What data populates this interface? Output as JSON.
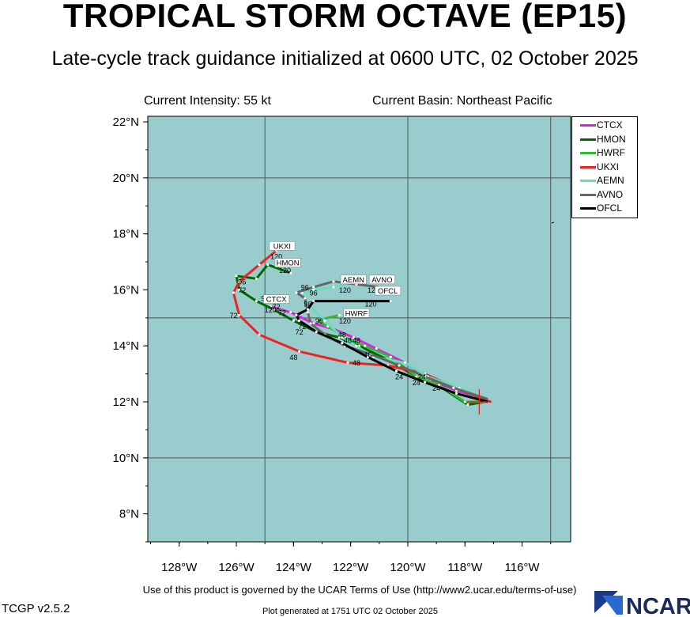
{
  "header": {
    "title": "TROPICAL STORM OCTAVE (EP15)",
    "subtitle": "Late-cycle track guidance initialized at 0600 UTC, 02 October 2025",
    "intensity": "Current Intensity: 55 kt",
    "basin": "Current Basin: Northeast Pacific"
  },
  "footer": {
    "terms": "Use of this product is governed by the UCAR Terms of Use (http://www2.ucar.edu/terms-of-use)",
    "version": "TCGP v2.5.2",
    "generated": "Plot generated at 1751 UTC   02 October 2025",
    "logo_text": "NCAR"
  },
  "map": {
    "ocean_color": "#99cccc",
    "lon_range": [
      -129.1,
      -114.3
    ],
    "lat_range": [
      7.0,
      22.2
    ],
    "lon_ticks": [
      {
        "value": -128,
        "label": "128°W"
      },
      {
        "value": -126,
        "label": "126°W"
      },
      {
        "value": -124,
        "label": "124°W"
      },
      {
        "value": -122,
        "label": "122°W"
      },
      {
        "value": -120,
        "label": "120°W"
      },
      {
        "value": -118,
        "label": "118°W"
      },
      {
        "value": -116,
        "label": "116°W"
      }
    ],
    "lat_ticks": [
      {
        "value": 8,
        "label": "8°N"
      },
      {
        "value": 10,
        "label": "10°N"
      },
      {
        "value": 12,
        "label": "12°N"
      },
      {
        "value": 14,
        "label": "14°N"
      },
      {
        "value": 16,
        "label": "16°N"
      },
      {
        "value": 18,
        "label": "18°N"
      },
      {
        "value": 20,
        "label": "20°N"
      },
      {
        "value": 22,
        "label": "22°N"
      }
    ],
    "grid_lon": [
      -125,
      -120,
      -115
    ],
    "grid_lat": [
      10,
      15,
      20
    ],
    "current_position": {
      "lon": -117.5,
      "lat": 12.0
    }
  },
  "chart_data": {
    "type": "map-tracks",
    "tracks": [
      {
        "name": "CTCX",
        "color": "#dd22dd",
        "points": [
          [
            -117.2,
            12.1
          ],
          [
            -118.3,
            12.4
          ],
          [
            -119.2,
            12.8
          ],
          [
            -120.1,
            13.4
          ],
          [
            -121.1,
            13.9
          ],
          [
            -121.9,
            14.3
          ],
          [
            -122.6,
            14.6
          ],
          [
            -123.3,
            14.8
          ],
          [
            -124.1,
            15.2
          ],
          [
            -124.8,
            15.4
          ]
        ]
      },
      {
        "name": "HMON",
        "color": "#006600",
        "points": [
          [
            -117.3,
            12.0
          ],
          [
            -117.9,
            11.9
          ],
          [
            -118.8,
            12.5
          ],
          [
            -119.7,
            12.9
          ],
          [
            -120.7,
            13.5
          ],
          [
            -121.7,
            14.0
          ],
          [
            -122.4,
            14.3
          ],
          [
            -123.2,
            14.5
          ],
          [
            -124.0,
            14.9
          ],
          [
            -124.7,
            15.3
          ],
          [
            -125.3,
            15.6
          ],
          [
            -125.9,
            16.0
          ],
          [
            -126.0,
            16.5
          ],
          [
            -125.3,
            16.4
          ],
          [
            -124.9,
            16.9
          ],
          [
            -124.1,
            16.6
          ]
        ]
      },
      {
        "name": "HWRF",
        "color": "#33bb33",
        "points": [
          [
            -117.3,
            12.0
          ],
          [
            -118.0,
            12.0
          ],
          [
            -118.9,
            12.6
          ],
          [
            -119.7,
            12.9
          ],
          [
            -120.6,
            13.6
          ],
          [
            -121.5,
            14.0
          ],
          [
            -122.2,
            14.3
          ],
          [
            -122.8,
            14.7
          ],
          [
            -123.2,
            14.9
          ],
          [
            -122.4,
            15.1
          ]
        ]
      },
      {
        "name": "UKXI",
        "color": "#ee2222",
        "points": [
          [
            -117.1,
            12.0
          ],
          [
            -118.1,
            12.4
          ],
          [
            -119.4,
            13.0
          ],
          [
            -120.7,
            13.3
          ],
          [
            -122.1,
            13.4
          ],
          [
            -123.8,
            13.8
          ],
          [
            -125.2,
            14.4
          ],
          [
            -125.9,
            15.1
          ],
          [
            -126.1,
            15.9
          ],
          [
            -125.9,
            16.3
          ],
          [
            -125.2,
            16.9
          ],
          [
            -124.6,
            17.4
          ]
        ]
      },
      {
        "name": "AEMN",
        "color": "#66ddbb",
        "points": [
          [
            -117.2,
            12.1
          ],
          [
            -118.2,
            12.5
          ],
          [
            -119.3,
            12.9
          ],
          [
            -120.1,
            13.4
          ],
          [
            -121.2,
            13.6
          ],
          [
            -121.8,
            14.0
          ],
          [
            -122.3,
            14.3
          ],
          [
            -122.9,
            14.9
          ],
          [
            -123.5,
            15.5
          ],
          [
            -123.7,
            15.9
          ],
          [
            -123.3,
            16.0
          ],
          [
            -122.6,
            16.1
          ],
          [
            -121.7,
            16.3
          ]
        ]
      },
      {
        "name": "AVNO",
        "color": "#666666",
        "points": [
          [
            -117.2,
            12.1
          ],
          [
            -118.4,
            12.5
          ],
          [
            -119.4,
            12.9
          ],
          [
            -120.3,
            13.3
          ],
          [
            -121.3,
            13.7
          ],
          [
            -122.2,
            14.0
          ],
          [
            -122.9,
            14.4
          ],
          [
            -123.4,
            14.8
          ],
          [
            -123.5,
            15.2
          ],
          [
            -123.6,
            15.7
          ],
          [
            -123.9,
            15.9
          ],
          [
            -123.3,
            16.1
          ],
          [
            -122.6,
            16.3
          ],
          [
            -121.8,
            16.2
          ],
          [
            -121.0,
            16.1
          ]
        ]
      },
      {
        "name": "OFCL",
        "color": "#000000",
        "points": [
          [
            -117.2,
            12.0
          ],
          [
            -118.3,
            12.3
          ],
          [
            -119.4,
            12.7
          ],
          [
            -120.4,
            13.1
          ],
          [
            -121.4,
            13.6
          ],
          [
            -122.3,
            14.1
          ],
          [
            -123.2,
            14.5
          ],
          [
            -123.8,
            14.9
          ],
          [
            -123.9,
            15.1
          ],
          [
            -123.5,
            15.3
          ],
          [
            -123.3,
            15.6
          ],
          [
            -120.6,
            15.6
          ]
        ]
      }
    ],
    "tau_labels": [
      {
        "text": "24",
        "lon": -119.5,
        "lat": 12.8
      },
      {
        "text": "24",
        "lon": -119.7,
        "lat": 12.6
      },
      {
        "text": "24",
        "lon": -120.3,
        "lat": 12.8
      },
      {
        "text": "24",
        "lon": -119.0,
        "lat": 12.4
      },
      {
        "text": "48",
        "lon": -121.8,
        "lat": 13.3
      },
      {
        "text": "48",
        "lon": -121.4,
        "lat": 13.6
      },
      {
        "text": "48",
        "lon": -124.0,
        "lat": 13.5
      },
      {
        "text": "48",
        "lon": -122.3,
        "lat": 14.3
      },
      {
        "text": "48",
        "lon": -122.1,
        "lat": 14.1
      },
      {
        "text": "48",
        "lon": -121.8,
        "lat": 14.1
      },
      {
        "text": "72",
        "lon": -123.8,
        "lat": 14.4
      },
      {
        "text": "72",
        "lon": -123.7,
        "lat": 14.6
      },
      {
        "text": "72",
        "lon": -124.4,
        "lat": 15.1
      },
      {
        "text": "72",
        "lon": -124.6,
        "lat": 15.3
      },
      {
        "text": "72",
        "lon": -125.8,
        "lat": 15.9
      },
      {
        "text": "72",
        "lon": -126.1,
        "lat": 15.0
      },
      {
        "text": "96",
        "lon": -123.5,
        "lat": 15.4
      },
      {
        "text": "96",
        "lon": -123.1,
        "lat": 14.8
      },
      {
        "text": "96",
        "lon": -123.6,
        "lat": 16.0
      },
      {
        "text": "96",
        "lon": -123.3,
        "lat": 15.8
      },
      {
        "text": "96",
        "lon": -125.8,
        "lat": 16.2
      },
      {
        "text": "96",
        "lon": -125.0,
        "lat": 15.6
      },
      {
        "text": "120",
        "lon": -124.6,
        "lat": 17.1
      },
      {
        "text": "120",
        "lon": -124.3,
        "lat": 16.6
      },
      {
        "text": "120",
        "lon": -124.8,
        "lat": 15.2
      },
      {
        "text": "120",
        "lon": -122.2,
        "lat": 15.9
      },
      {
        "text": "120",
        "lon": -121.2,
        "lat": 15.9
      },
      {
        "text": "120",
        "lon": -121.3,
        "lat": 15.4
      },
      {
        "text": "120",
        "lon": -122.2,
        "lat": 14.8
      }
    ],
    "track_end_labels": [
      {
        "text": "UKXI",
        "lon": -124.4,
        "lat": 17.5
      },
      {
        "text": "HMON",
        "lon": -124.2,
        "lat": 16.9
      },
      {
        "text": "CTCX",
        "lon": -124.6,
        "lat": 15.6
      },
      {
        "text": "AEMN",
        "lon": -121.9,
        "lat": 16.3
      },
      {
        "text": "AVNO",
        "lon": -120.9,
        "lat": 16.3
      },
      {
        "text": "OFCL",
        "lon": -120.7,
        "lat": 15.9
      },
      {
        "text": "HWRF",
        "lon": -121.8,
        "lat": 15.1
      }
    ],
    "legend": [
      "CTCX",
      "HMON",
      "HWRF",
      "UKXI",
      "AEMN",
      "AVNO",
      "OFCL"
    ]
  },
  "legend_colors": {
    "CTCX": "#dd22dd",
    "HMON": "#006600",
    "HWRF": "#33bb33",
    "UKXI": "#ee2222",
    "AEMN": "#66ddbb",
    "AVNO": "#666666",
    "OFCL": "#000000"
  }
}
